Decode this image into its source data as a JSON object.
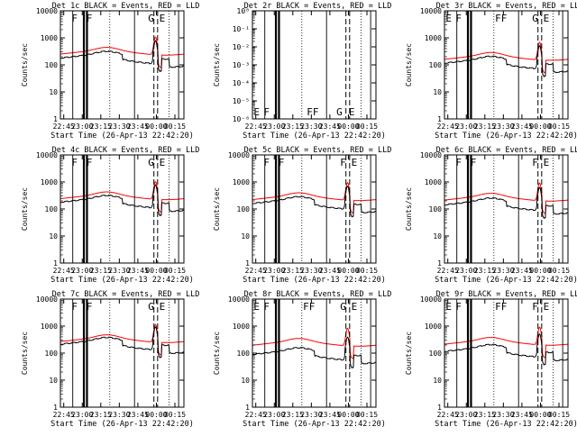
{
  "common": {
    "xlabel": "Start Time (26-Apr-13 22:42:20)",
    "ylabel": "Counts/sec",
    "x_tick_labels": [
      "22:45",
      "23:00",
      "23:15",
      "23:30",
      "23:45",
      "00:00",
      "00:15"
    ],
    "x_ticks_min": [
      2.7,
      17.7,
      32.7,
      47.7,
      62.7,
      77.7,
      92.7
    ],
    "x_range_min": [
      0,
      100
    ],
    "colors": {
      "events": "#000000",
      "lld": "#ff0000",
      "frame": "#000000"
    }
  },
  "markers": {
    "thick": [
      19.0,
      21.5
    ],
    "thin": [
      10.0,
      60.0,
      95.7
    ],
    "dashed": [
      75.7,
      78.7
    ],
    "dotted": [
      40.0,
      88.0
    ]
  },
  "chart_data": [
    {
      "type": "line",
      "title": "Det 1c BLACK = Events, RED = LLD",
      "ylog": true,
      "yticks": [
        1,
        10,
        100,
        1000,
        10000
      ],
      "ytick_labels": [
        "1",
        "10",
        "100",
        "1000",
        "10000"
      ],
      "ylim": [
        1,
        10000
      ],
      "empty": false,
      "events_base": 200,
      "lld_base": 280,
      "scale": 1.0,
      "flags": [
        "F",
        "F",
        "G",
        "E"
      ],
      "flag_x": [
        9,
        21,
        71,
        80
      ]
    },
    {
      "type": "line",
      "title": "Det 2r BLACK = Events, RED = LLD",
      "ylog": true,
      "yticks": [
        1,
        0.1,
        0.01,
        0.001,
        0.0001,
        1e-05,
        1e-06
      ],
      "ytick_labels": [
        "10⁰",
        "10⁻¹",
        "10⁻²",
        "10⁻³",
        "10⁻⁴",
        "10⁻⁵",
        "10⁻⁶"
      ],
      "ylim": [
        1e-06,
        1
      ],
      "empty": true,
      "flags": [
        "E",
        "F",
        "FF",
        "G",
        "E"
      ],
      "flag_x": [
        1,
        9,
        44,
        68,
        78
      ]
    },
    {
      "type": "line",
      "title": "Det 3r BLACK = Events, RED = LLD",
      "ylog": true,
      "yticks": [
        1,
        10,
        100,
        1000,
        10000
      ],
      "ytick_labels": [
        "1",
        "10",
        "100",
        "1000",
        "10000"
      ],
      "ylim": [
        1,
        10000
      ],
      "empty": false,
      "events_base": 130,
      "lld_base": 180,
      "scale": 1.0,
      "flags": [
        "E",
        "F",
        "FF",
        "G",
        "E"
      ],
      "flag_x": [
        1,
        9,
        41,
        71,
        80
      ]
    },
    {
      "type": "line",
      "title": "Det 4c BLACK = Events, RED = LLD",
      "ylog": true,
      "yticks": [
        1,
        10,
        100,
        1000,
        10000
      ],
      "ytick_labels": [
        "1",
        "10",
        "100",
        "1000",
        "10000"
      ],
      "ylim": [
        1,
        10000
      ],
      "empty": false,
      "events_base": 200,
      "lld_base": 270,
      "scale": 1.0,
      "flags": [
        "F",
        "F",
        "G",
        "E"
      ],
      "flag_x": [
        9,
        21,
        71,
        80
      ]
    },
    {
      "type": "line",
      "title": "Det 5c BLACK = Events, RED = LLD",
      "ylog": true,
      "yticks": [
        1,
        10,
        100,
        1000,
        10000
      ],
      "ytick_labels": [
        "1",
        "10",
        "100",
        "1000",
        "10000"
      ],
      "ylim": [
        1,
        10000
      ],
      "empty": false,
      "events_base": 180,
      "lld_base": 250,
      "scale": 1.0,
      "flags": [
        "F",
        "F",
        "F",
        "E"
      ],
      "flag_x": [
        9,
        21,
        71,
        80
      ]
    },
    {
      "type": "line",
      "title": "Det 6c BLACK = Events, RED = LLD",
      "ylog": true,
      "yticks": [
        1,
        10,
        100,
        1000,
        10000
      ],
      "ytick_labels": [
        "1",
        "10",
        "100",
        "1000",
        "10000"
      ],
      "ylim": [
        1,
        10000
      ],
      "empty": false,
      "events_base": 160,
      "lld_base": 240,
      "scale": 1.0,
      "flags": [
        "F",
        "F",
        "F",
        "E"
      ],
      "flag_x": [
        9,
        21,
        71,
        80
      ]
    },
    {
      "type": "line",
      "title": "Det 7c BLACK = Events, RED = LLD",
      "ylog": true,
      "yticks": [
        1,
        10,
        100,
        1000,
        10000
      ],
      "ytick_labels": [
        "1",
        "10",
        "100",
        "1000",
        "10000"
      ],
      "ylim": [
        1,
        10000
      ],
      "empty": false,
      "events_base": 240,
      "lld_base": 300,
      "scale": 1.0,
      "flags": [
        "F",
        "F",
        "G",
        "E"
      ],
      "flag_x": [
        9,
        21,
        71,
        80
      ]
    },
    {
      "type": "line",
      "title": "Det 8r BLACK = Events, RED = LLD",
      "ylog": true,
      "yticks": [
        1,
        10,
        100,
        1000,
        10000
      ],
      "ytick_labels": [
        "1",
        "10",
        "100",
        "1000",
        "10000"
      ],
      "ylim": [
        1,
        10000
      ],
      "empty": false,
      "events_base": 100,
      "lld_base": 220,
      "scale": 1.0,
      "flags": [
        "E",
        "F",
        "FF",
        "G",
        "E"
      ],
      "flag_x": [
        1,
        9,
        41,
        71,
        80
      ]
    },
    {
      "type": "line",
      "title": "Det 9r BLACK = Events, RED = LLD",
      "ylog": true,
      "yticks": [
        1,
        10,
        100,
        1000,
        10000
      ],
      "ytick_labels": [
        "1",
        "10",
        "100",
        "1000",
        "10000"
      ],
      "ylim": [
        1,
        10000
      ],
      "empty": false,
      "events_base": 130,
      "lld_base": 240,
      "scale": 1.0,
      "flags": [
        "E",
        "F",
        "FF",
        "F",
        "E"
      ],
      "flag_x": [
        1,
        9,
        41,
        71,
        80
      ]
    }
  ]
}
